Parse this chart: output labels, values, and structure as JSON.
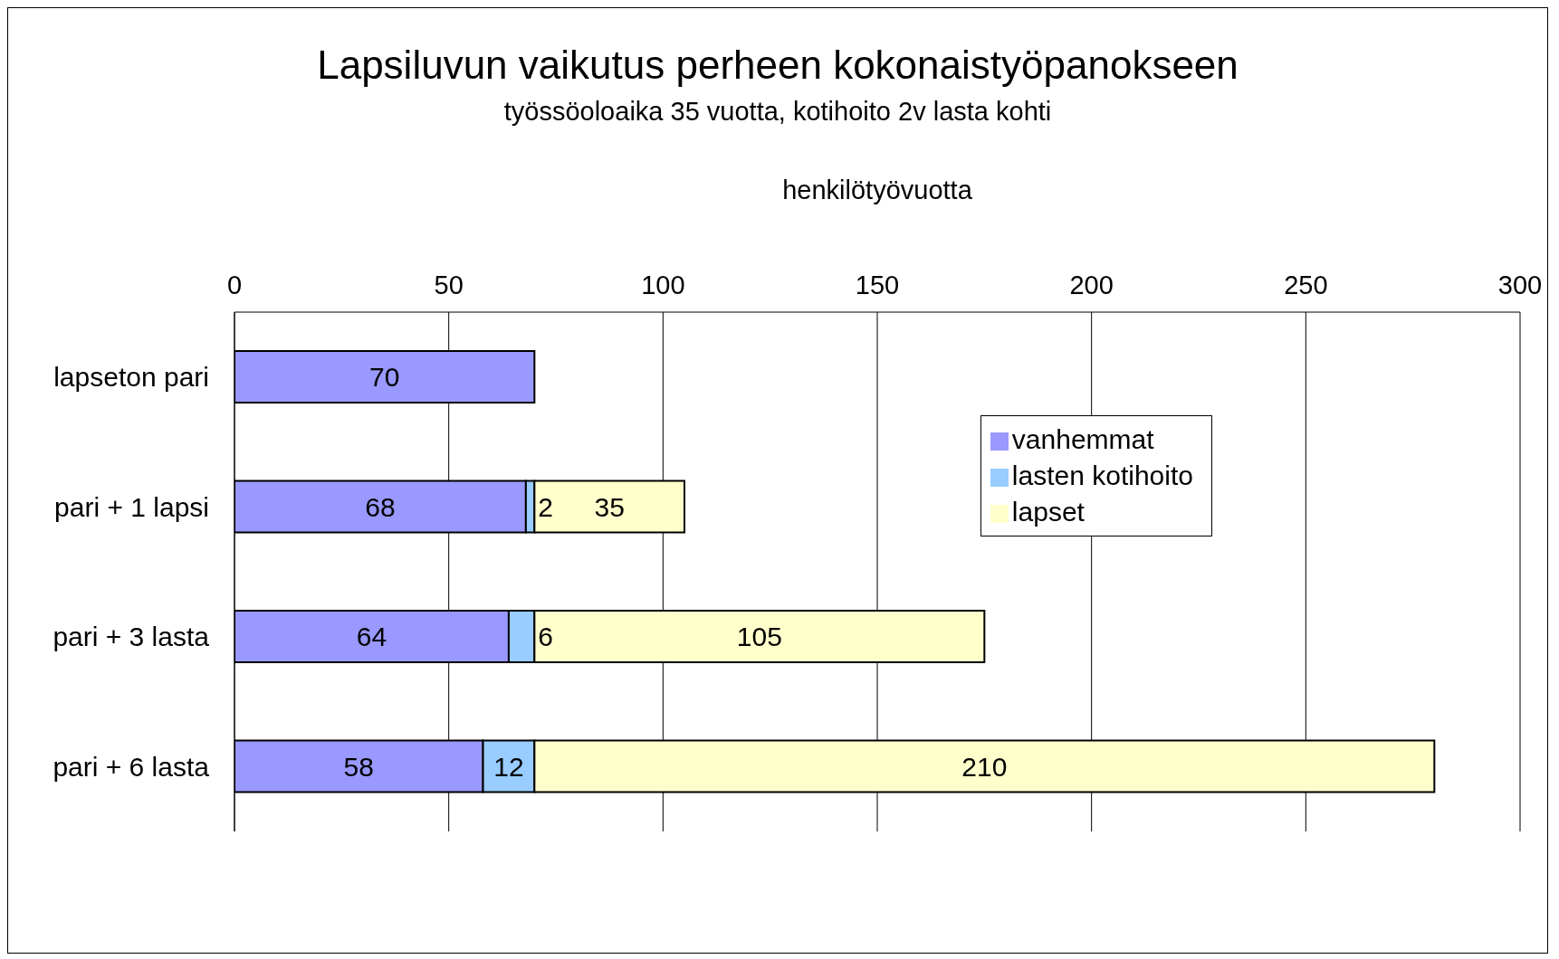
{
  "chart_data": {
    "type": "bar",
    "orientation": "horizontal",
    "stacked": true,
    "title": "Lapsiluvun vaikutus perheen kokonaistyöpanokseen",
    "subtitle": "työssöoloaika 35 vuotta, kotihoito 2v lasta kohti",
    "xlabel": "henkilötyövuotta",
    "categories": [
      "lapseton pari",
      "pari + 1 lapsi",
      "pari + 3 lasta",
      "pari + 6 lasta"
    ],
    "series": [
      {
        "name": "vanhemmat",
        "color": "#9999ff",
        "values": [
          70,
          68,
          64,
          58
        ]
      },
      {
        "name": "lasten kotihoito",
        "color": "#99ccff",
        "values": [
          null,
          2,
          6,
          12
        ]
      },
      {
        "name": "lapset",
        "color": "#ffffcc",
        "values": [
          null,
          35,
          105,
          210
        ]
      }
    ],
    "xlim": [
      0,
      300
    ],
    "xticks": [
      0,
      50,
      100,
      150,
      200,
      250,
      300
    ],
    "grid": "x",
    "legend": "right",
    "data_labels": true
  }
}
